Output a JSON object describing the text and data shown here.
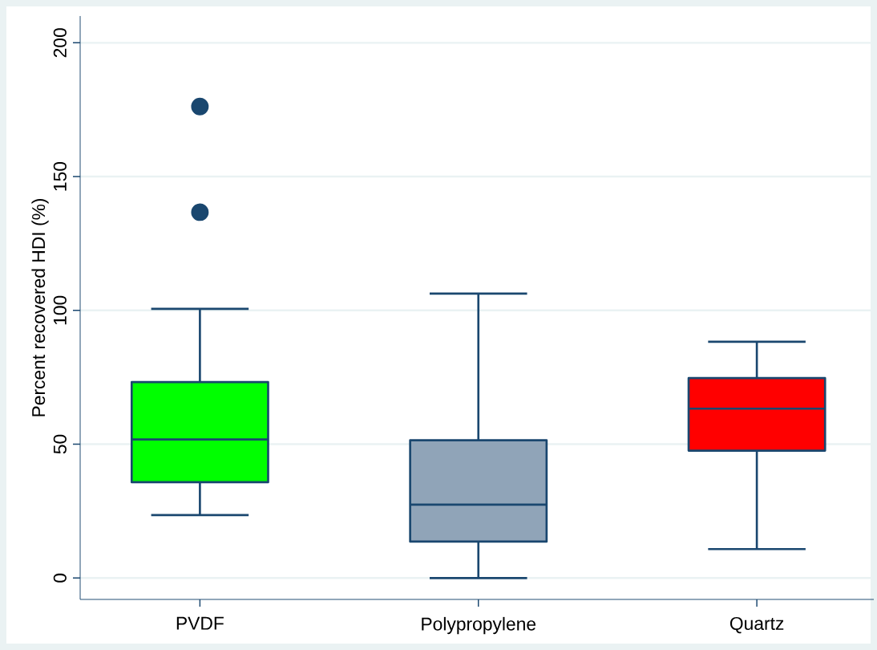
{
  "chart_data": {
    "type": "box",
    "ylabel": "Percent recovered HDI (%)",
    "categories": [
      "PVDF",
      "Polypropylene",
      "Quartz"
    ],
    "colors": [
      "#00ff00",
      "#90a4b8",
      "#ff0000"
    ],
    "boxes": [
      {
        "low": 23.5,
        "q1": 35.8,
        "median": 51.8,
        "q3": 73.2,
        "high": 100.6,
        "outliers": [
          136.7,
          176.2
        ]
      },
      {
        "low": 0,
        "q1": 13.6,
        "median": 27.4,
        "q3": 51.5,
        "high": 106.3
      },
      {
        "low": 10.8,
        "q1": 47.6,
        "median": 63.3,
        "q3": 74.7,
        "high": 88.3
      }
    ],
    "ylim": [
      -8,
      210
    ],
    "yticks": [
      0,
      50,
      100,
      150,
      200
    ],
    "grid": "y"
  }
}
